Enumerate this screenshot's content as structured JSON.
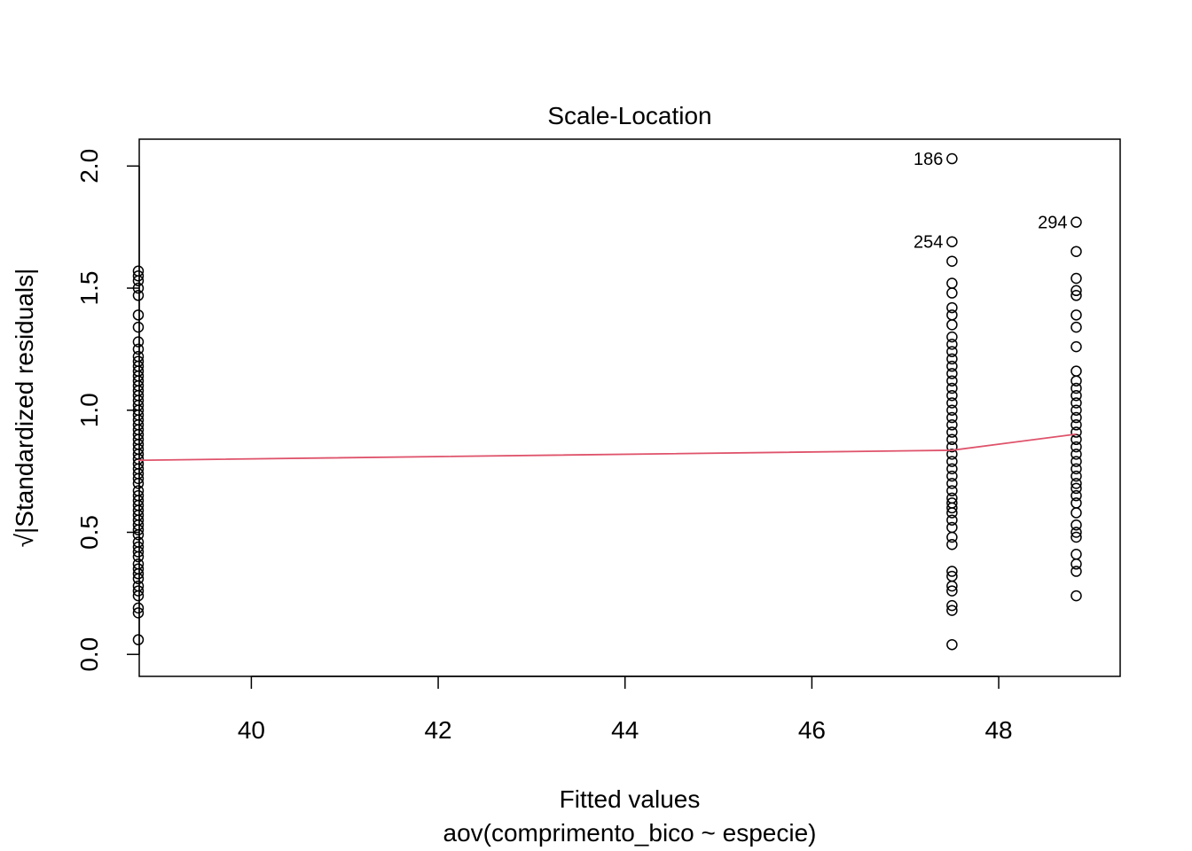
{
  "chart_data": {
    "type": "scatter",
    "title": "Scale-Location",
    "xlabel": "Fitted values",
    "xsublabel": "aov(comprimento_bico ~ especie)",
    "ylabel": "√|Standardized residuals|",
    "xlim": [
      38.8,
      49.3
    ],
    "ylim": [
      -0.09,
      2.11
    ],
    "x_ticks": [
      40,
      42,
      44,
      46,
      48
    ],
    "y_ticks": [
      0.0,
      0.5,
      1.0,
      1.5,
      2.0
    ],
    "y_tick_labels": [
      "0.0",
      "0.5",
      "1.0",
      "1.5",
      "2.0"
    ],
    "grid": false,
    "point_color": "#000000",
    "smooth_color": "#DF536B",
    "groups": [
      {
        "fitted": 38.79,
        "values": [
          0.06,
          0.17,
          0.19,
          0.24,
          0.26,
          0.28,
          0.31,
          0.33,
          0.35,
          0.37,
          0.4,
          0.42,
          0.44,
          0.46,
          0.49,
          0.51,
          0.53,
          0.55,
          0.57,
          0.59,
          0.61,
          0.63,
          0.65,
          0.67,
          0.7,
          0.72,
          0.74,
          0.76,
          0.78,
          0.8,
          0.82,
          0.84,
          0.86,
          0.88,
          0.9,
          0.92,
          0.94,
          0.96,
          0.98,
          1.0,
          1.02,
          1.04,
          1.06,
          1.08,
          1.1,
          1.12,
          1.14,
          1.16,
          1.18,
          1.2,
          1.22,
          1.25,
          1.28,
          1.34,
          1.39,
          1.47,
          1.5,
          1.53,
          1.55,
          1.57
        ]
      },
      {
        "fitted": 47.5,
        "values": [
          0.04,
          0.18,
          0.2,
          0.26,
          0.28,
          0.32,
          0.34,
          0.45,
          0.48,
          0.52,
          0.55,
          0.58,
          0.6,
          0.62,
          0.64,
          0.67,
          0.7,
          0.73,
          0.76,
          0.79,
          0.82,
          0.85,
          0.88,
          0.91,
          0.94,
          0.97,
          1.0,
          1.03,
          1.06,
          1.09,
          1.12,
          1.15,
          1.18,
          1.21,
          1.24,
          1.27,
          1.3,
          1.35,
          1.39,
          1.42,
          1.48,
          1.52,
          1.61,
          1.69,
          2.03
        ]
      },
      {
        "fitted": 48.83,
        "values": [
          0.24,
          0.34,
          0.37,
          0.41,
          0.48,
          0.5,
          0.53,
          0.58,
          0.62,
          0.65,
          0.68,
          0.7,
          0.73,
          0.76,
          0.79,
          0.82,
          0.85,
          0.88,
          0.91,
          0.94,
          0.97,
          1.0,
          1.03,
          1.06,
          1.09,
          1.12,
          1.16,
          1.26,
          1.34,
          1.39,
          1.47,
          1.49,
          1.54,
          1.65,
          1.77
        ]
      }
    ],
    "smooth": [
      {
        "x": 38.79,
        "y": 0.795
      },
      {
        "x": 47.5,
        "y": 0.836
      },
      {
        "x": 48.83,
        "y": 0.902
      }
    ],
    "annotations": [
      {
        "label": "186",
        "x": 47.5,
        "y": 2.03
      },
      {
        "label": "254",
        "x": 47.5,
        "y": 1.69
      },
      {
        "label": "294",
        "x": 48.83,
        "y": 1.77
      }
    ]
  }
}
